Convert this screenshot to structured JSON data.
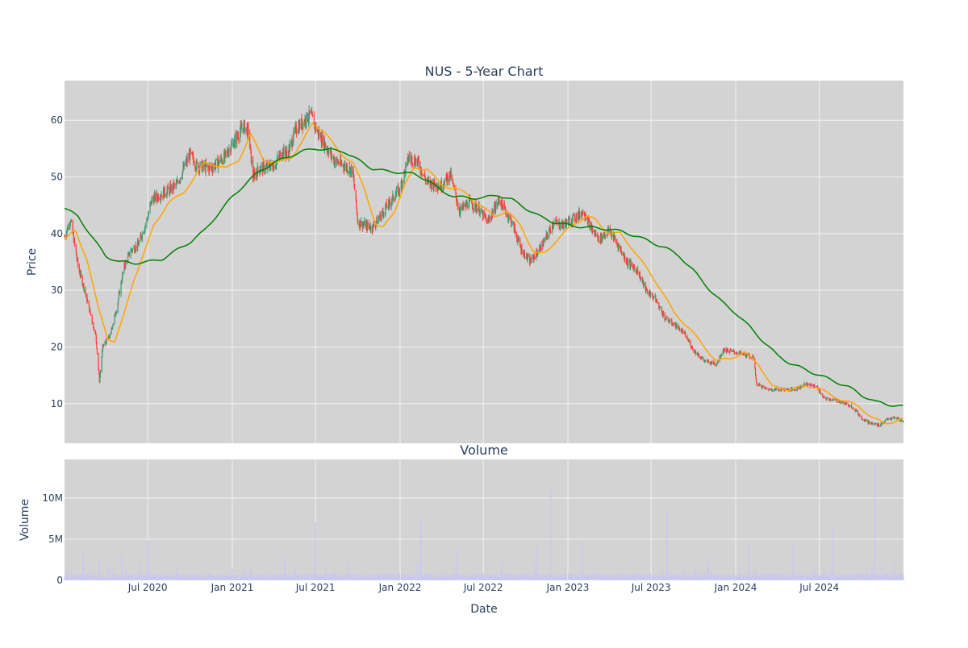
{
  "colors": {
    "background": "#ffffff",
    "plot_bg": "#d3d3d3",
    "grid": "#f2f2f2",
    "text": "#2a3f5f",
    "up": "#3d9970",
    "down": "#ff4136",
    "ma_short": "#ffa500",
    "ma_long": "#008000",
    "volume": "#c9c6f2"
  },
  "chart_data": [
    {
      "type": "candlestick",
      "title": "NUS - 5-Year Chart",
      "ylabel": "Price",
      "ylim": [
        3,
        67
      ],
      "yticks": [
        10,
        20,
        30,
        40,
        50,
        60
      ],
      "xlim": [
        "2020-01-02",
        "2024-12-31"
      ],
      "xticks": [
        "2020-07-01",
        "2021-01-01",
        "2021-07-01",
        "2022-01-01",
        "2022-07-01",
        "2023-01-01",
        "2023-07-01",
        "2024-01-01",
        "2024-07-01"
      ],
      "xtick_labels": [
        "Jul 2020",
        "Jan 2021",
        "Jul 2021",
        "Jan 2022",
        "Jul 2022",
        "Jan 2023",
        "Jul 2023",
        "Jan 2024",
        "Jul 2024"
      ],
      "grid": true,
      "price_path": [
        [
          "2020-01-02",
          39.5
        ],
        [
          "2020-01-15",
          42.5
        ],
        [
          "2020-02-01",
          34.0
        ],
        [
          "2020-02-15",
          30.0
        ],
        [
          "2020-03-01",
          25.0
        ],
        [
          "2020-03-10",
          22.0
        ],
        [
          "2020-03-18",
          14.0
        ],
        [
          "2020-03-25",
          20.0
        ],
        [
          "2020-04-10",
          22.0
        ],
        [
          "2020-04-25",
          27.0
        ],
        [
          "2020-05-10",
          34.0
        ],
        [
          "2020-05-25",
          37.0
        ],
        [
          "2020-06-10",
          38.0
        ],
        [
          "2020-06-28",
          42.0
        ],
        [
          "2020-07-10",
          46.0
        ],
        [
          "2020-08-01",
          47.0
        ],
        [
          "2020-09-01",
          48.5
        ],
        [
          "2020-10-01",
          54.0
        ],
        [
          "2020-10-15",
          52.0
        ],
        [
          "2020-11-15",
          51.5
        ],
        [
          "2020-12-15",
          53.5
        ],
        [
          "2021-01-10",
          57.0
        ],
        [
          "2021-01-25",
          59.0
        ],
        [
          "2021-02-05",
          58.0
        ],
        [
          "2021-02-15",
          50.0
        ],
        [
          "2021-03-01",
          51.5
        ],
        [
          "2021-04-01",
          52.0
        ],
        [
          "2021-04-20",
          54.5
        ],
        [
          "2021-05-01",
          54.0
        ],
        [
          "2021-05-20",
          58.5
        ],
        [
          "2021-06-20",
          61.0
        ],
        [
          "2021-07-05",
          58.0
        ],
        [
          "2021-07-20",
          56.0
        ],
        [
          "2021-08-10",
          53.0
        ],
        [
          "2021-09-01",
          52.0
        ],
        [
          "2021-09-20",
          51.0
        ],
        [
          "2021-10-01",
          42.0
        ],
        [
          "2021-11-01",
          41.0
        ],
        [
          "2021-12-01",
          44.5
        ],
        [
          "2022-01-01",
          48.0
        ],
        [
          "2022-01-20",
          53.5
        ],
        [
          "2022-02-10",
          52.5
        ],
        [
          "2022-03-01",
          49.0
        ],
        [
          "2022-04-01",
          48.5
        ],
        [
          "2022-04-20",
          50.5
        ],
        [
          "2022-05-10",
          44.0
        ],
        [
          "2022-06-01",
          45.5
        ],
        [
          "2022-06-20",
          44.5
        ],
        [
          "2022-07-10",
          42.0
        ],
        [
          "2022-08-05",
          46.0
        ],
        [
          "2022-09-01",
          42.0
        ],
        [
          "2022-09-20",
          37.5
        ],
        [
          "2022-10-10",
          35.0
        ],
        [
          "2022-10-25",
          36.5
        ],
        [
          "2022-11-10",
          38.5
        ],
        [
          "2022-12-01",
          42.0
        ],
        [
          "2022-12-20",
          41.5
        ],
        [
          "2023-01-10",
          42.5
        ],
        [
          "2023-02-05",
          44.0
        ],
        [
          "2023-02-20",
          41.0
        ],
        [
          "2023-03-10",
          39.0
        ],
        [
          "2023-04-01",
          40.5
        ],
        [
          "2023-04-20",
          38.0
        ],
        [
          "2023-05-10",
          35.0
        ],
        [
          "2023-06-01",
          33.5
        ],
        [
          "2023-06-20",
          30.0
        ],
        [
          "2023-07-10",
          28.5
        ],
        [
          "2023-08-01",
          25.0
        ],
        [
          "2023-08-20",
          24.0
        ],
        [
          "2023-09-10",
          22.5
        ],
        [
          "2023-10-01",
          19.5
        ],
        [
          "2023-10-25",
          17.5
        ],
        [
          "2023-11-20",
          17.0
        ],
        [
          "2023-12-05",
          19.5
        ],
        [
          "2024-01-05",
          19.0
        ],
        [
          "2024-01-25",
          18.5
        ],
        [
          "2024-02-10",
          18.0
        ],
        [
          "2024-02-15",
          13.5
        ],
        [
          "2024-03-10",
          12.5
        ],
        [
          "2024-04-10",
          12.5
        ],
        [
          "2024-05-10",
          12.5
        ],
        [
          "2024-06-01",
          13.5
        ],
        [
          "2024-06-25",
          13.0
        ],
        [
          "2024-07-10",
          11.0
        ],
        [
          "2024-08-10",
          10.5
        ],
        [
          "2024-09-10",
          9.5
        ],
        [
          "2024-10-01",
          7.5
        ],
        [
          "2024-10-20",
          6.5
        ],
        [
          "2024-11-10",
          6.2
        ],
        [
          "2024-11-25",
          7.2
        ],
        [
          "2024-12-15",
          7.5
        ],
        [
          "2024-12-31",
          6.8
        ]
      ],
      "ma_short": [
        [
          "2020-01-02",
          39.0
        ],
        [
          "2020-01-25",
          40.5
        ],
        [
          "2020-02-20",
          35.5
        ],
        [
          "2020-03-15",
          27.0
        ],
        [
          "2020-04-05",
          21.5
        ],
        [
          "2020-04-20",
          21.0
        ],
        [
          "2020-05-10",
          25.5
        ],
        [
          "2020-06-01",
          32.0
        ],
        [
          "2020-06-25",
          37.0
        ],
        [
          "2020-07-15",
          41.5
        ],
        [
          "2020-08-15",
          45.5
        ],
        [
          "2020-09-15",
          47.0
        ],
        [
          "2020-10-15",
          50.5
        ],
        [
          "2020-11-01",
          52.5
        ],
        [
          "2020-12-01",
          52.0
        ],
        [
          "2020-12-20",
          51.5
        ],
        [
          "2021-01-15",
          53.0
        ],
        [
          "2021-02-10",
          57.5
        ],
        [
          "2021-03-10",
          53.0
        ],
        [
          "2021-04-10",
          52.5
        ],
        [
          "2021-05-10",
          53.5
        ],
        [
          "2021-06-01",
          56.0
        ],
        [
          "2021-06-25",
          59.5
        ],
        [
          "2021-07-20",
          58.0
        ],
        [
          "2021-08-20",
          54.5
        ],
        [
          "2021-09-20",
          52.5
        ],
        [
          "2021-10-15",
          48.0
        ],
        [
          "2021-11-10",
          41.5
        ],
        [
          "2021-11-25",
          41.0
        ],
        [
          "2021-12-20",
          44.0
        ],
        [
          "2022-01-10",
          48.5
        ],
        [
          "2022-02-01",
          51.5
        ],
        [
          "2022-03-01",
          51.5
        ],
        [
          "2022-04-01",
          48.5
        ],
        [
          "2022-05-01",
          48.0
        ],
        [
          "2022-05-25",
          47.0
        ],
        [
          "2022-06-25",
          45.0
        ],
        [
          "2022-07-25",
          43.0
        ],
        [
          "2022-08-20",
          44.0
        ],
        [
          "2022-09-20",
          41.5
        ],
        [
          "2022-10-20",
          36.5
        ],
        [
          "2022-11-10",
          36.5
        ],
        [
          "2022-12-10",
          39.0
        ],
        [
          "2023-01-10",
          41.5
        ],
        [
          "2023-02-10",
          43.0
        ],
        [
          "2023-03-01",
          42.5
        ],
        [
          "2023-04-01",
          40.0
        ],
        [
          "2023-04-25",
          40.0
        ],
        [
          "2023-05-20",
          37.5
        ],
        [
          "2023-06-20",
          34.0
        ],
        [
          "2023-07-20",
          30.5
        ],
        [
          "2023-08-20",
          26.0
        ],
        [
          "2023-09-20",
          23.5
        ],
        [
          "2023-10-20",
          20.5
        ],
        [
          "2023-11-20",
          17.5
        ],
        [
          "2023-12-20",
          18.0
        ],
        [
          "2024-01-20",
          19.0
        ],
        [
          "2024-02-20",
          17.0
        ],
        [
          "2024-03-20",
          13.0
        ],
        [
          "2024-04-25",
          12.5
        ],
        [
          "2024-05-25",
          13.0
        ],
        [
          "2024-06-25",
          13.0
        ],
        [
          "2024-07-25",
          11.5
        ],
        [
          "2024-08-25",
          10.5
        ],
        [
          "2024-09-25",
          9.5
        ],
        [
          "2024-10-25",
          7.5
        ],
        [
          "2024-11-20",
          6.5
        ],
        [
          "2024-12-31",
          7.2
        ]
      ],
      "ma_long": [
        [
          "2020-01-02",
          44.5
        ],
        [
          "2020-02-01",
          43.0
        ],
        [
          "2020-03-01",
          39.5
        ],
        [
          "2020-04-01",
          36.0
        ],
        [
          "2020-05-01",
          35.0
        ],
        [
          "2020-06-01",
          34.8
        ],
        [
          "2020-07-01",
          35.0
        ],
        [
          "2020-08-01",
          35.5
        ],
        [
          "2020-09-01",
          37.0
        ],
        [
          "2020-10-01",
          38.5
        ],
        [
          "2020-11-01",
          40.5
        ],
        [
          "2020-12-01",
          43.5
        ],
        [
          "2021-01-01",
          46.5
        ],
        [
          "2021-02-01",
          49.0
        ],
        [
          "2021-03-01",
          51.0
        ],
        [
          "2021-04-01",
          52.5
        ],
        [
          "2021-05-01",
          53.5
        ],
        [
          "2021-06-01",
          54.5
        ],
        [
          "2021-07-01",
          55.0
        ],
        [
          "2021-08-01",
          54.8
        ],
        [
          "2021-09-01",
          54.5
        ],
        [
          "2021-10-01",
          53.0
        ],
        [
          "2021-11-01",
          51.5
        ],
        [
          "2021-12-01",
          51.0
        ],
        [
          "2022-01-01",
          50.8
        ],
        [
          "2022-02-01",
          50.5
        ],
        [
          "2022-03-01",
          49.5
        ],
        [
          "2022-04-01",
          47.5
        ],
        [
          "2022-05-01",
          46.5
        ],
        [
          "2022-06-01",
          46.3
        ],
        [
          "2022-07-01",
          46.3
        ],
        [
          "2022-08-01",
          46.8
        ],
        [
          "2022-09-01",
          46.0
        ],
        [
          "2022-10-01",
          44.5
        ],
        [
          "2022-11-01",
          43.0
        ],
        [
          "2022-12-01",
          42.0
        ],
        [
          "2023-01-01",
          41.5
        ],
        [
          "2023-02-01",
          41.2
        ],
        [
          "2023-03-01",
          41.0
        ],
        [
          "2023-04-01",
          40.8
        ],
        [
          "2023-05-01",
          40.3
        ],
        [
          "2023-06-01",
          39.5
        ],
        [
          "2023-07-01",
          38.5
        ],
        [
          "2023-08-01",
          37.5
        ],
        [
          "2023-09-01",
          36.0
        ],
        [
          "2023-10-01",
          33.5
        ],
        [
          "2023-11-01",
          30.5
        ],
        [
          "2023-12-01",
          28.0
        ],
        [
          "2024-01-01",
          26.0
        ],
        [
          "2024-02-01",
          23.5
        ],
        [
          "2024-03-01",
          21.0
        ],
        [
          "2024-04-01",
          18.5
        ],
        [
          "2024-05-01",
          17.0
        ],
        [
          "2024-06-01",
          16.0
        ],
        [
          "2024-07-01",
          15.0
        ],
        [
          "2024-08-01",
          14.0
        ],
        [
          "2024-09-01",
          13.0
        ],
        [
          "2024-10-01",
          11.5
        ],
        [
          "2024-11-01",
          10.3
        ],
        [
          "2024-12-01",
          9.8
        ],
        [
          "2024-12-31",
          9.5
        ]
      ]
    },
    {
      "type": "bar",
      "title": "Volume",
      "xlabel": "Date",
      "ylabel": "Volume",
      "ylim": [
        0,
        14700000
      ],
      "yticks": [
        0,
        5000000,
        10000000
      ],
      "ytick_labels": [
        "0",
        "5M",
        "10M"
      ],
      "xlim": [
        "2020-01-02",
        "2024-12-31"
      ],
      "xticks": [
        "2020-07-01",
        "2021-01-01",
        "2021-07-01",
        "2022-01-01",
        "2022-07-01",
        "2023-01-01",
        "2023-07-01",
        "2024-01-01",
        "2024-07-01"
      ],
      "xtick_labels": [
        "Jul 2020",
        "Jan 2021",
        "Jul 2021",
        "Jan 2022",
        "Jul 2022",
        "Jan 2023",
        "Jul 2023",
        "Jan 2024",
        "Jul 2024"
      ],
      "grid": true,
      "spikes": [
        [
          "2020-02-12",
          3300000
        ],
        [
          "2020-03-18",
          2400000
        ],
        [
          "2020-05-05",
          3100000
        ],
        [
          "2020-06-15",
          2000000
        ],
        [
          "2020-07-01",
          4800000
        ],
        [
          "2021-02-10",
          1600000
        ],
        [
          "2021-04-25",
          2800000
        ],
        [
          "2021-07-01",
          7000000
        ],
        [
          "2022-02-15",
          7600000
        ],
        [
          "2022-05-05",
          3800000
        ],
        [
          "2022-10-25",
          4000000
        ],
        [
          "2022-11-25",
          11200000
        ],
        [
          "2023-02-01",
          4600000
        ],
        [
          "2023-08-05",
          8300000
        ],
        [
          "2023-11-01",
          2900000
        ],
        [
          "2024-01-30",
          4300000
        ],
        [
          "2024-05-05",
          4300000
        ],
        [
          "2024-08-01",
          6300000
        ],
        [
          "2024-10-30",
          14000000
        ],
        [
          "2024-12-10",
          2200000
        ]
      ]
    }
  ]
}
